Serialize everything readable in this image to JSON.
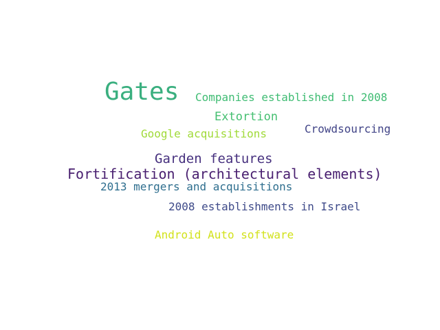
{
  "words": [
    {
      "text": "Gates",
      "color": "#3aaf7f"
    },
    {
      "text": "Companies established in 2008",
      "color": "#3fbc73"
    },
    {
      "text": "Extortion",
      "color": "#44bf70"
    },
    {
      "text": "Crowdsourcing",
      "color": "#414487"
    },
    {
      "text": "Google acquisitions",
      "color": "#a0da39"
    },
    {
      "text": "Garden features",
      "color": "#46307e"
    },
    {
      "text": "Fortification (architectural elements)",
      "color": "#481e6f"
    },
    {
      "text": "2013 mergers and acquisitions",
      "color": "#2e6e8e"
    },
    {
      "text": "2008 establishments in Israel",
      "color": "#3e4a89"
    },
    {
      "text": "Android Auto software",
      "color": "#d2e21b"
    }
  ]
}
